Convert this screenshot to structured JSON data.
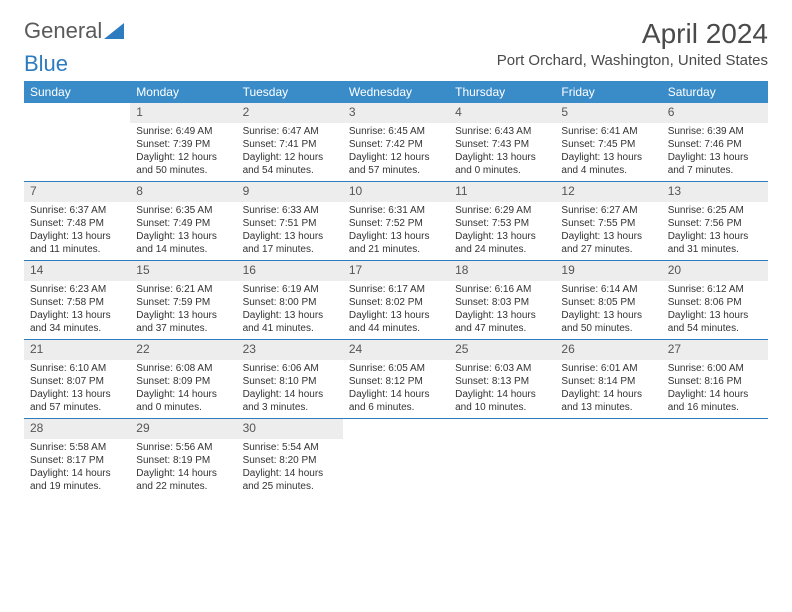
{
  "logo": {
    "text1": "General",
    "text2": "Blue"
  },
  "title": "April 2024",
  "location": "Port Orchard, Washington, United States",
  "colors": {
    "header_bg": "#3a8cc9",
    "header_text": "#ffffff",
    "daynum_bg": "#ededed",
    "rule": "#2d7cc0"
  },
  "dayNames": [
    "Sunday",
    "Monday",
    "Tuesday",
    "Wednesday",
    "Thursday",
    "Friday",
    "Saturday"
  ],
  "weeks": [
    [
      {
        "n": "",
        "sr": "",
        "ss": "",
        "dl": ""
      },
      {
        "n": "1",
        "sr": "Sunrise: 6:49 AM",
        "ss": "Sunset: 7:39 PM",
        "dl": "Daylight: 12 hours and 50 minutes."
      },
      {
        "n": "2",
        "sr": "Sunrise: 6:47 AM",
        "ss": "Sunset: 7:41 PM",
        "dl": "Daylight: 12 hours and 54 minutes."
      },
      {
        "n": "3",
        "sr": "Sunrise: 6:45 AM",
        "ss": "Sunset: 7:42 PM",
        "dl": "Daylight: 12 hours and 57 minutes."
      },
      {
        "n": "4",
        "sr": "Sunrise: 6:43 AM",
        "ss": "Sunset: 7:43 PM",
        "dl": "Daylight: 13 hours and 0 minutes."
      },
      {
        "n": "5",
        "sr": "Sunrise: 6:41 AM",
        "ss": "Sunset: 7:45 PM",
        "dl": "Daylight: 13 hours and 4 minutes."
      },
      {
        "n": "6",
        "sr": "Sunrise: 6:39 AM",
        "ss": "Sunset: 7:46 PM",
        "dl": "Daylight: 13 hours and 7 minutes."
      }
    ],
    [
      {
        "n": "7",
        "sr": "Sunrise: 6:37 AM",
        "ss": "Sunset: 7:48 PM",
        "dl": "Daylight: 13 hours and 11 minutes."
      },
      {
        "n": "8",
        "sr": "Sunrise: 6:35 AM",
        "ss": "Sunset: 7:49 PM",
        "dl": "Daylight: 13 hours and 14 minutes."
      },
      {
        "n": "9",
        "sr": "Sunrise: 6:33 AM",
        "ss": "Sunset: 7:51 PM",
        "dl": "Daylight: 13 hours and 17 minutes."
      },
      {
        "n": "10",
        "sr": "Sunrise: 6:31 AM",
        "ss": "Sunset: 7:52 PM",
        "dl": "Daylight: 13 hours and 21 minutes."
      },
      {
        "n": "11",
        "sr": "Sunrise: 6:29 AM",
        "ss": "Sunset: 7:53 PM",
        "dl": "Daylight: 13 hours and 24 minutes."
      },
      {
        "n": "12",
        "sr": "Sunrise: 6:27 AM",
        "ss": "Sunset: 7:55 PM",
        "dl": "Daylight: 13 hours and 27 minutes."
      },
      {
        "n": "13",
        "sr": "Sunrise: 6:25 AM",
        "ss": "Sunset: 7:56 PM",
        "dl": "Daylight: 13 hours and 31 minutes."
      }
    ],
    [
      {
        "n": "14",
        "sr": "Sunrise: 6:23 AM",
        "ss": "Sunset: 7:58 PM",
        "dl": "Daylight: 13 hours and 34 minutes."
      },
      {
        "n": "15",
        "sr": "Sunrise: 6:21 AM",
        "ss": "Sunset: 7:59 PM",
        "dl": "Daylight: 13 hours and 37 minutes."
      },
      {
        "n": "16",
        "sr": "Sunrise: 6:19 AM",
        "ss": "Sunset: 8:00 PM",
        "dl": "Daylight: 13 hours and 41 minutes."
      },
      {
        "n": "17",
        "sr": "Sunrise: 6:17 AM",
        "ss": "Sunset: 8:02 PM",
        "dl": "Daylight: 13 hours and 44 minutes."
      },
      {
        "n": "18",
        "sr": "Sunrise: 6:16 AM",
        "ss": "Sunset: 8:03 PM",
        "dl": "Daylight: 13 hours and 47 minutes."
      },
      {
        "n": "19",
        "sr": "Sunrise: 6:14 AM",
        "ss": "Sunset: 8:05 PM",
        "dl": "Daylight: 13 hours and 50 minutes."
      },
      {
        "n": "20",
        "sr": "Sunrise: 6:12 AM",
        "ss": "Sunset: 8:06 PM",
        "dl": "Daylight: 13 hours and 54 minutes."
      }
    ],
    [
      {
        "n": "21",
        "sr": "Sunrise: 6:10 AM",
        "ss": "Sunset: 8:07 PM",
        "dl": "Daylight: 13 hours and 57 minutes."
      },
      {
        "n": "22",
        "sr": "Sunrise: 6:08 AM",
        "ss": "Sunset: 8:09 PM",
        "dl": "Daylight: 14 hours and 0 minutes."
      },
      {
        "n": "23",
        "sr": "Sunrise: 6:06 AM",
        "ss": "Sunset: 8:10 PM",
        "dl": "Daylight: 14 hours and 3 minutes."
      },
      {
        "n": "24",
        "sr": "Sunrise: 6:05 AM",
        "ss": "Sunset: 8:12 PM",
        "dl": "Daylight: 14 hours and 6 minutes."
      },
      {
        "n": "25",
        "sr": "Sunrise: 6:03 AM",
        "ss": "Sunset: 8:13 PM",
        "dl": "Daylight: 14 hours and 10 minutes."
      },
      {
        "n": "26",
        "sr": "Sunrise: 6:01 AM",
        "ss": "Sunset: 8:14 PM",
        "dl": "Daylight: 14 hours and 13 minutes."
      },
      {
        "n": "27",
        "sr": "Sunrise: 6:00 AM",
        "ss": "Sunset: 8:16 PM",
        "dl": "Daylight: 14 hours and 16 minutes."
      }
    ],
    [
      {
        "n": "28",
        "sr": "Sunrise: 5:58 AM",
        "ss": "Sunset: 8:17 PM",
        "dl": "Daylight: 14 hours and 19 minutes."
      },
      {
        "n": "29",
        "sr": "Sunrise: 5:56 AM",
        "ss": "Sunset: 8:19 PM",
        "dl": "Daylight: 14 hours and 22 minutes."
      },
      {
        "n": "30",
        "sr": "Sunrise: 5:54 AM",
        "ss": "Sunset: 8:20 PM",
        "dl": "Daylight: 14 hours and 25 minutes."
      },
      {
        "n": "",
        "sr": "",
        "ss": "",
        "dl": ""
      },
      {
        "n": "",
        "sr": "",
        "ss": "",
        "dl": ""
      },
      {
        "n": "",
        "sr": "",
        "ss": "",
        "dl": ""
      },
      {
        "n": "",
        "sr": "",
        "ss": "",
        "dl": ""
      }
    ]
  ]
}
